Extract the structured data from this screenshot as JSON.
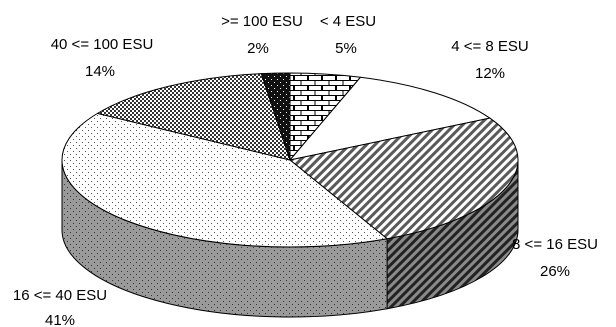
{
  "chart_data": {
    "type": "pie",
    "title": "",
    "slices": [
      {
        "label": "< 4 ESU",
        "value": 5,
        "value_label": "5%",
        "pattern": "bricks"
      },
      {
        "label": "4 <= 8 ESU",
        "value": 12,
        "value_label": "12%",
        "pattern": "plain-white"
      },
      {
        "label": "8 <= 16 ESU",
        "value": 26,
        "value_label": "26%",
        "pattern": "diagonal-hatch"
      },
      {
        "label": "16 <= 40 ESU",
        "value": 41,
        "value_label": "41%",
        "pattern": "fine-dots"
      },
      {
        "label": "40 <= 100 ESU",
        "value": 14,
        "value_label": "14%",
        "pattern": "checkerboard"
      },
      {
        "label": ">= 100 ESU",
        "value": 2,
        "value_label": "2%",
        "pattern": "black-dotted"
      }
    ],
    "style": "3d-tilted",
    "legend": "none",
    "colors": {
      "outline": "#000000",
      "background": "#ffffff"
    }
  }
}
